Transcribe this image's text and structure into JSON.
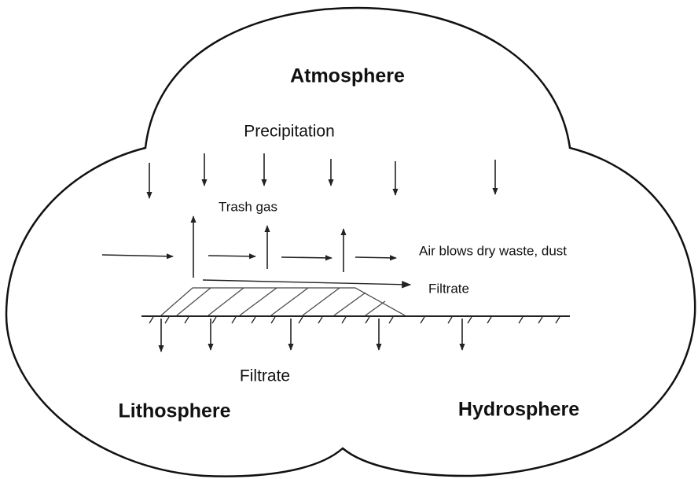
{
  "labels": {
    "atmosphere": "Atmosphere",
    "precipitation": "Precipitation",
    "trash_gas": "Trash gas",
    "air_blows": "Air blows dry waste, dust",
    "filtrate_surface": "Filtrate",
    "filtrate_ground": "Filtrate",
    "lithosphere": "Lithosphere",
    "hydrosphere": "Hydrosphere"
  }
}
